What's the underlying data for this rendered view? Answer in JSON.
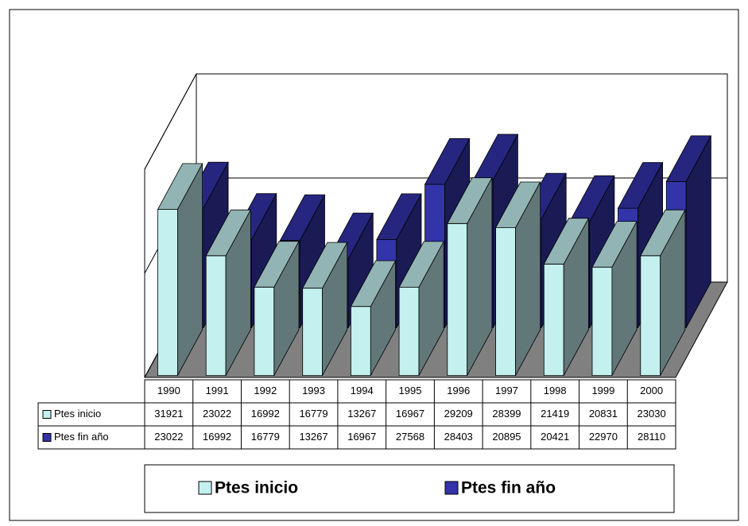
{
  "chart_data": {
    "type": "bar3d",
    "categories": [
      "1990",
      "1991",
      "1992",
      "1993",
      "1994",
      "1995",
      "1996",
      "1997",
      "1998",
      "1999",
      "2000"
    ],
    "series": [
      {
        "name": "Ptes inicio",
        "color": "#c4f0f0",
        "values": [
          31921,
          23022,
          16992,
          16779,
          13267,
          16967,
          29209,
          28399,
          21419,
          20831,
          23030
        ]
      },
      {
        "name": "Ptes fin año",
        "color": "#3333aa",
        "values": [
          23022,
          16992,
          16779,
          13267,
          16967,
          27568,
          28403,
          20895,
          20421,
          22970,
          28110
        ]
      }
    ],
    "ylim": [
      0,
      40000
    ],
    "yticks": [
      0,
      20000,
      40000
    ],
    "grid": true,
    "data_table": true
  }
}
